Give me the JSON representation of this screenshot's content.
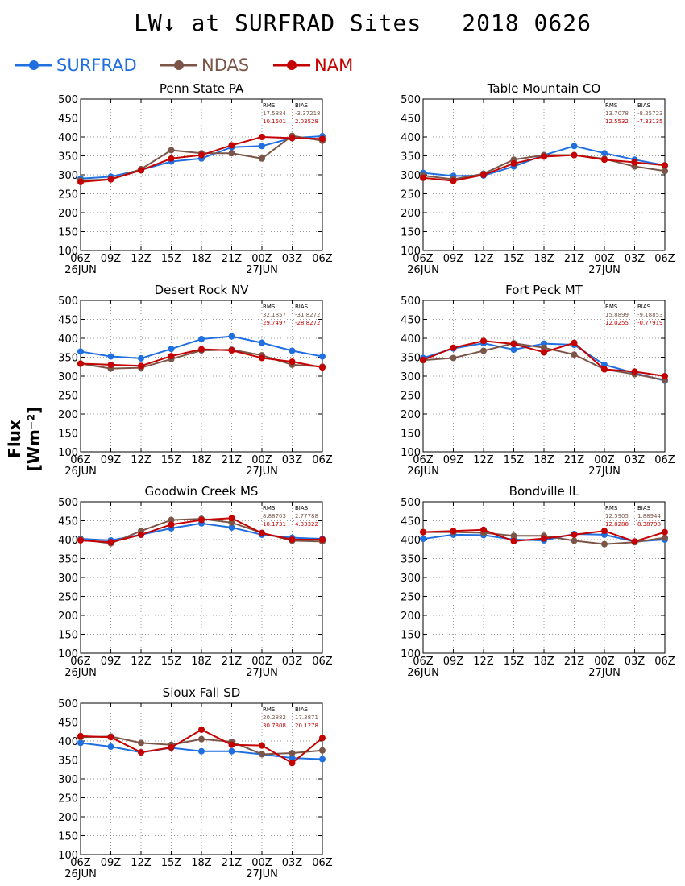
{
  "page": {
    "title": "LW↓ at SURFRAD Sites",
    "date": "2018 0626",
    "ylabel": "Flux [Wm⁻²]",
    "legend": [
      {
        "label": "SURFRAD",
        "color": "#1f6fe0"
      },
      {
        "label": "NDAS",
        "color": "#7b5548"
      },
      {
        "label": "NAM",
        "color": "#c40000"
      }
    ]
  },
  "chart_data": [
    {
      "type": "line",
      "title": "Penn State PA",
      "x": [
        "06Z",
        "09Z",
        "12Z",
        "15Z",
        "18Z",
        "21Z",
        "00Z",
        "03Z",
        "06Z"
      ],
      "date_labels": [
        "26JUN",
        "27JUN"
      ],
      "ylim": [
        100,
        500
      ],
      "yticks": [
        100,
        150,
        200,
        250,
        300,
        350,
        400,
        450,
        500
      ],
      "grid": true,
      "stats": {
        "headers": [
          "RMS",
          "BIAS"
        ],
        "rows": [
          [
            "17.5884",
            "-3.37218"
          ],
          [
            "10.1501",
            "2.03528"
          ]
        ]
      },
      "series": [
        {
          "name": "SURFRAD",
          "values": [
            290,
            295,
            313,
            335,
            343,
            373,
            376,
            397,
            402
          ]
        },
        {
          "name": "NDAS",
          "values": [
            285,
            288,
            315,
            365,
            357,
            357,
            343,
            403,
            390
          ]
        },
        {
          "name": "NAM",
          "values": [
            281,
            288,
            312,
            343,
            352,
            378,
            400,
            397,
            395
          ]
        }
      ]
    },
    {
      "type": "line",
      "title": "Table Mountain CO",
      "x": [
        "06Z",
        "09Z",
        "12Z",
        "15Z",
        "18Z",
        "21Z",
        "00Z",
        "03Z",
        "06Z"
      ],
      "date_labels": [
        "26JUN",
        "27JUN"
      ],
      "ylim": [
        100,
        500
      ],
      "yticks": [
        100,
        150,
        200,
        250,
        300,
        350,
        400,
        450,
        500
      ],
      "grid": true,
      "stats": {
        "headers": [
          "RMS",
          "BIAS"
        ],
        "rows": [
          [
            "13.7078",
            "-8.25723"
          ],
          [
            "12.5532",
            "-7.33135"
          ]
        ]
      },
      "series": [
        {
          "name": "SURFRAD",
          "values": [
            305,
            297,
            298,
            322,
            352,
            376,
            357,
            340,
            325
          ]
        },
        {
          "name": "NDAS",
          "values": [
            298,
            288,
            303,
            340,
            352,
            352,
            342,
            322,
            310
          ]
        },
        {
          "name": "NAM",
          "values": [
            292,
            284,
            300,
            330,
            348,
            352,
            340,
            333,
            325
          ]
        }
      ]
    },
    {
      "type": "line",
      "title": "Desert Rock NV",
      "x": [
        "06Z",
        "09Z",
        "12Z",
        "15Z",
        "18Z",
        "21Z",
        "00Z",
        "03Z",
        "06Z"
      ],
      "date_labels": [
        "26JUN",
        "27JUN"
      ],
      "ylim": [
        100,
        500
      ],
      "yticks": [
        100,
        150,
        200,
        250,
        300,
        350,
        400,
        450,
        500
      ],
      "grid": true,
      "stats": {
        "headers": [
          "RMS",
          "BIAS"
        ],
        "rows": [
          [
            "32.1857",
            "-31.8272"
          ],
          [
            "29.7497",
            "-28.8272"
          ]
        ]
      },
      "series": [
        {
          "name": "SURFRAD",
          "values": [
            365,
            352,
            347,
            372,
            398,
            405,
            388,
            367,
            352
          ]
        },
        {
          "name": "NDAS",
          "values": [
            333,
            320,
            322,
            345,
            368,
            370,
            355,
            330,
            325
          ]
        },
        {
          "name": "NAM",
          "values": [
            333,
            330,
            327,
            353,
            371,
            368,
            348,
            338,
            323
          ]
        }
      ]
    },
    {
      "type": "line",
      "title": "Fort Peck MT",
      "x": [
        "06Z",
        "09Z",
        "12Z",
        "15Z",
        "18Z",
        "21Z",
        "00Z",
        "03Z",
        "06Z"
      ],
      "date_labels": [
        "26JUN",
        "27JUN"
      ],
      "ylim": [
        100,
        500
      ],
      "yticks": [
        100,
        150,
        200,
        250,
        300,
        350,
        400,
        450,
        500
      ],
      "grid": true,
      "stats": {
        "headers": [
          "RMS",
          "BIAS"
        ],
        "rows": [
          [
            "15.8899",
            "-9.18853"
          ],
          [
            "12.0255",
            "-0.77919"
          ]
        ]
      },
      "series": [
        {
          "name": "SURFRAD",
          "values": [
            348,
            373,
            387,
            370,
            386,
            383,
            330,
            308,
            288
          ]
        },
        {
          "name": "NDAS",
          "values": [
            342,
            348,
            367,
            387,
            375,
            357,
            318,
            305,
            290
          ]
        },
        {
          "name": "NAM",
          "values": [
            343,
            375,
            393,
            385,
            363,
            388,
            318,
            312,
            300
          ]
        }
      ]
    },
    {
      "type": "line",
      "title": "Goodwin Creek MS",
      "x": [
        "06Z",
        "09Z",
        "12Z",
        "15Z",
        "18Z",
        "21Z",
        "00Z",
        "03Z",
        "06Z"
      ],
      "date_labels": [
        "26JUN",
        "27JUN"
      ],
      "ylim": [
        100,
        500
      ],
      "yticks": [
        100,
        150,
        200,
        250,
        300,
        350,
        400,
        450,
        500
      ],
      "grid": true,
      "stats": {
        "headers": [
          "RMS",
          "BIAS"
        ],
        "rows": [
          [
            "8.88703",
            "2.77788"
          ],
          [
            "10.1731",
            "4.33322"
          ]
        ]
      },
      "series": [
        {
          "name": "SURFRAD",
          "values": [
            402,
            398,
            413,
            430,
            443,
            432,
            413,
            405,
            402
          ]
        },
        {
          "name": "NDAS",
          "values": [
            400,
            390,
            423,
            452,
            455,
            445,
            418,
            397,
            395
          ]
        },
        {
          "name": "NAM",
          "values": [
            398,
            393,
            413,
            440,
            452,
            457,
            417,
            400,
            400
          ]
        }
      ]
    },
    {
      "type": "line",
      "title": "Bondville IL",
      "x": [
        "06Z",
        "09Z",
        "12Z",
        "15Z",
        "18Z",
        "21Z",
        "00Z",
        "03Z",
        "06Z"
      ],
      "date_labels": [
        "26JUN",
        "27JUN"
      ],
      "ylim": [
        100,
        500
      ],
      "yticks": [
        100,
        150,
        200,
        250,
        300,
        350,
        400,
        450,
        500
      ],
      "grid": true,
      "stats": {
        "headers": [
          "RMS",
          "BIAS"
        ],
        "rows": [
          [
            "12.5905",
            "1.88944"
          ],
          [
            "12.8288",
            "8.38798"
          ]
        ]
      },
      "series": [
        {
          "name": "SURFRAD",
          "values": [
            402,
            413,
            412,
            400,
            398,
            415,
            413,
            395,
            400
          ]
        },
        {
          "name": "NDAS",
          "values": [
            420,
            420,
            418,
            410,
            410,
            397,
            388,
            393,
            405
          ]
        },
        {
          "name": "NAM",
          "values": [
            420,
            423,
            426,
            396,
            403,
            413,
            423,
            395,
            420
          ]
        }
      ]
    },
    {
      "type": "line",
      "title": "Sioux Fall SD",
      "x": [
        "06Z",
        "09Z",
        "12Z",
        "15Z",
        "18Z",
        "21Z",
        "00Z",
        "03Z",
        "06Z"
      ],
      "date_labels": [
        "26JUN",
        "27JUN"
      ],
      "ylim": [
        100,
        500
      ],
      "yticks": [
        100,
        150,
        200,
        250,
        300,
        350,
        400,
        450,
        500
      ],
      "grid": true,
      "stats": {
        "headers": [
          "RMS",
          "BIAS"
        ],
        "rows": [
          [
            "20.2882",
            "17.3871"
          ],
          [
            "30.7308",
            "20.1278"
          ]
        ]
      },
      "series": [
        {
          "name": "SURFRAD",
          "values": [
            395,
            385,
            370,
            382,
            373,
            373,
            365,
            355,
            352
          ]
        },
        {
          "name": "NDAS",
          "values": [
            410,
            412,
            395,
            390,
            405,
            398,
            365,
            368,
            375
          ]
        },
        {
          "name": "NAM",
          "values": [
            413,
            410,
            370,
            383,
            430,
            390,
            388,
            342,
            408
          ]
        }
      ]
    }
  ]
}
